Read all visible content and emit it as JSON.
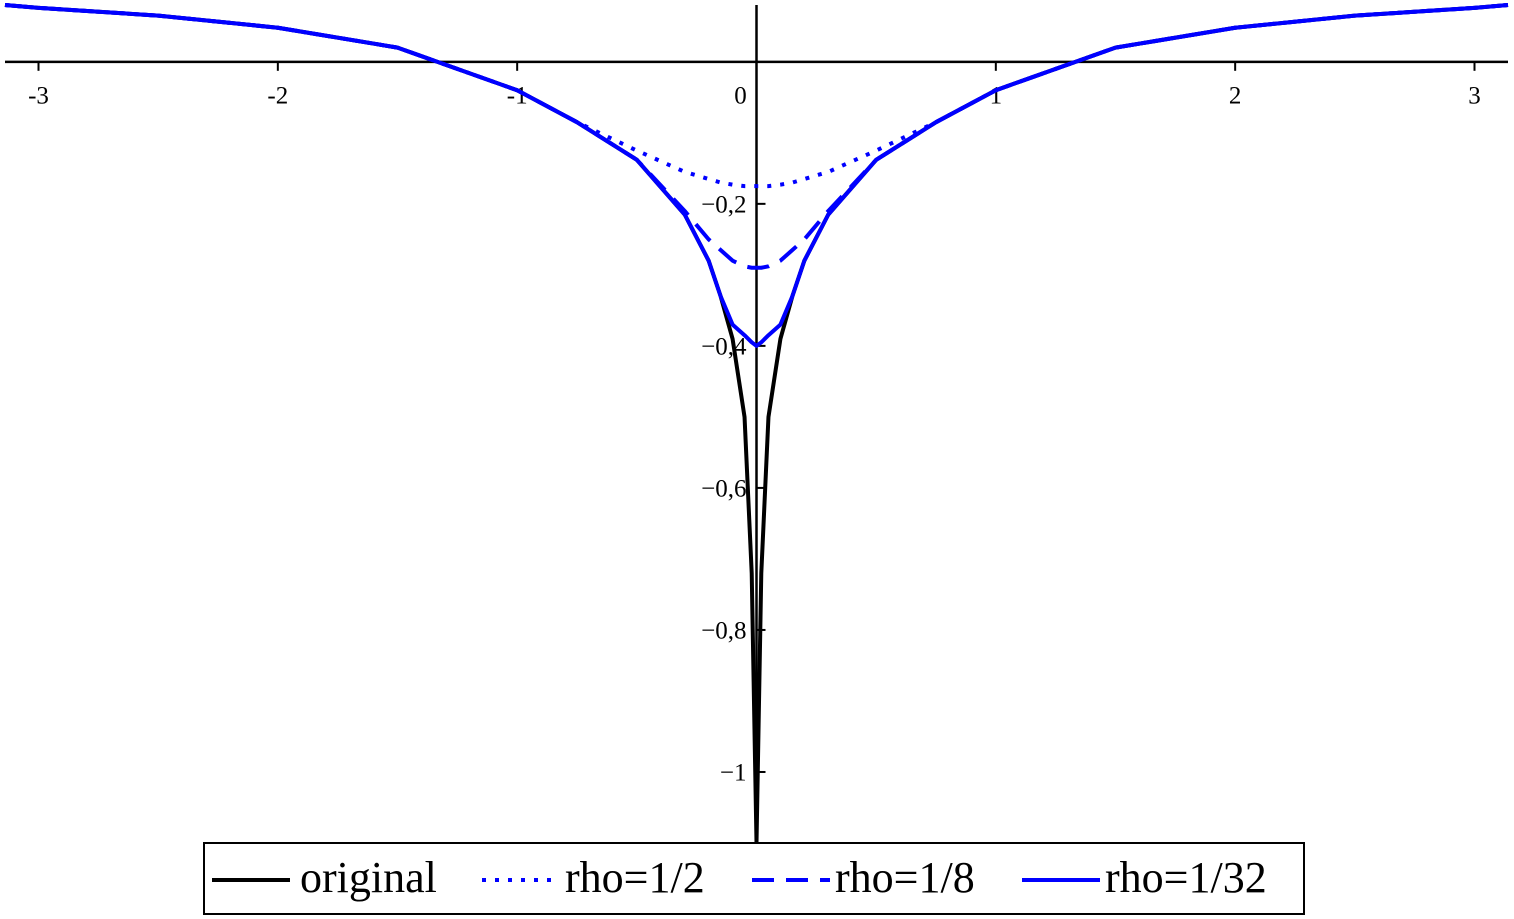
{
  "chart_data": {
    "type": "line",
    "x": [
      -3.14,
      -3,
      -2.5,
      -2,
      -1.5,
      -1,
      -0.75,
      -0.5,
      -0.3,
      -0.2,
      -0.15,
      -0.1,
      -0.05,
      -0.02,
      0,
      0.02,
      0.05,
      0.1,
      0.15,
      0.2,
      0.3,
      0.5,
      0.75,
      1,
      1.5,
      2,
      2.5,
      3,
      3.14
    ],
    "series": [
      {
        "name": "original",
        "color": "#000000",
        "dash": "solid",
        "values": [
          0.08,
          0.076,
          0.065,
          0.048,
          0.02,
          -0.04,
          -0.085,
          -0.138,
          -0.215,
          -0.28,
          -0.33,
          -0.39,
          -0.5,
          -0.72,
          -1.1,
          -0.72,
          -0.5,
          -0.39,
          -0.33,
          -0.28,
          -0.215,
          -0.138,
          -0.085,
          -0.04,
          0.02,
          0.048,
          0.065,
          0.076,
          0.08
        ]
      },
      {
        "name": "rho=1/2",
        "color": "#0000ff",
        "dash": "dot",
        "values": [
          0.08,
          0.076,
          0.065,
          0.048,
          0.02,
          -0.04,
          -0.085,
          -0.125,
          -0.155,
          -0.165,
          -0.17,
          -0.173,
          -0.175,
          -0.175,
          -0.175,
          -0.175,
          -0.175,
          -0.173,
          -0.17,
          -0.165,
          -0.155,
          -0.125,
          -0.085,
          -0.04,
          0.02,
          0.048,
          0.065,
          0.076,
          0.08
        ]
      },
      {
        "name": "rho=1/8",
        "color": "#0000ff",
        "dash": "dash",
        "values": [
          0.08,
          0.076,
          0.065,
          0.048,
          0.02,
          -0.04,
          -0.085,
          -0.138,
          -0.21,
          -0.25,
          -0.265,
          -0.28,
          -0.288,
          -0.29,
          -0.29,
          -0.29,
          -0.288,
          -0.28,
          -0.265,
          -0.25,
          -0.21,
          -0.138,
          -0.085,
          -0.04,
          0.02,
          0.048,
          0.065,
          0.076,
          0.08
        ]
      },
      {
        "name": "rho=1/32",
        "color": "#0000ff",
        "dash": "solid",
        "values": [
          0.08,
          0.076,
          0.065,
          0.048,
          0.02,
          -0.04,
          -0.085,
          -0.138,
          -0.215,
          -0.28,
          -0.33,
          -0.37,
          -0.385,
          -0.395,
          -0.4,
          -0.395,
          -0.385,
          -0.37,
          -0.33,
          -0.28,
          -0.215,
          -0.138,
          -0.085,
          -0.04,
          0.02,
          0.048,
          0.065,
          0.076,
          0.08
        ]
      }
    ],
    "xlim": [
      -3.14,
      3.14
    ],
    "ylim": [
      -1.1,
      0.08
    ],
    "xticks": [
      -3,
      -2,
      -1,
      0,
      1,
      2,
      3
    ],
    "yticks": [
      {
        "value": -0.2,
        "label": "−0,2"
      },
      {
        "value": -0.4,
        "label": "−0,4"
      },
      {
        "value": -0.6,
        "label": "−0,6"
      },
      {
        "value": -0.8,
        "label": "−0,8"
      },
      {
        "value": -1,
        "label": "−1"
      }
    ],
    "legend": "bottom"
  }
}
